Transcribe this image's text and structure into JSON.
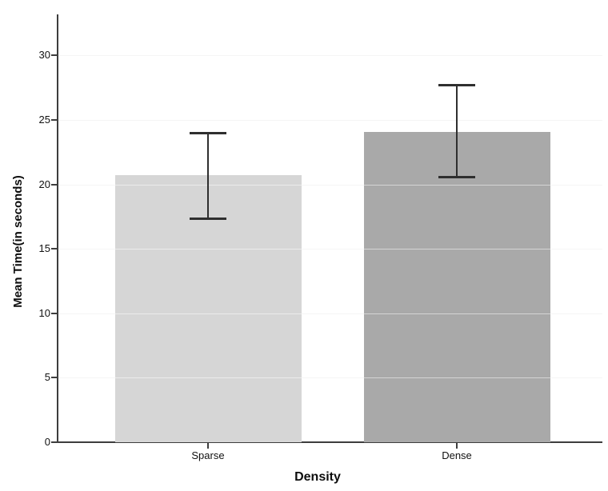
{
  "chart_data": {
    "type": "bar",
    "title": "",
    "xlabel": "Density",
    "ylabel": "Mean Time(in seconds)",
    "categories": [
      "Sparse",
      "Dense"
    ],
    "values": [
      20.7,
      24.1
    ],
    "error_bars": {
      "lower": [
        17.4,
        20.6
      ],
      "upper": [
        24.0,
        27.7
      ]
    },
    "bar_colors": [
      "#d6d6d6",
      "#a9a9a9"
    ],
    "yticks": [
      0,
      5,
      10,
      15,
      20,
      25,
      30
    ],
    "ytick_labels": [
      "0",
      "5",
      "10",
      "15",
      "20",
      "25",
      "30"
    ],
    "ylim": [
      0,
      33.2
    ],
    "grid": "horizontal-light",
    "legend": "none"
  },
  "colors": {
    "background": "#ffffff",
    "axis": "#3d3d3d",
    "gridline": "#ebebeb",
    "error_bar": "#2f2f2f",
    "text": "#111111"
  }
}
